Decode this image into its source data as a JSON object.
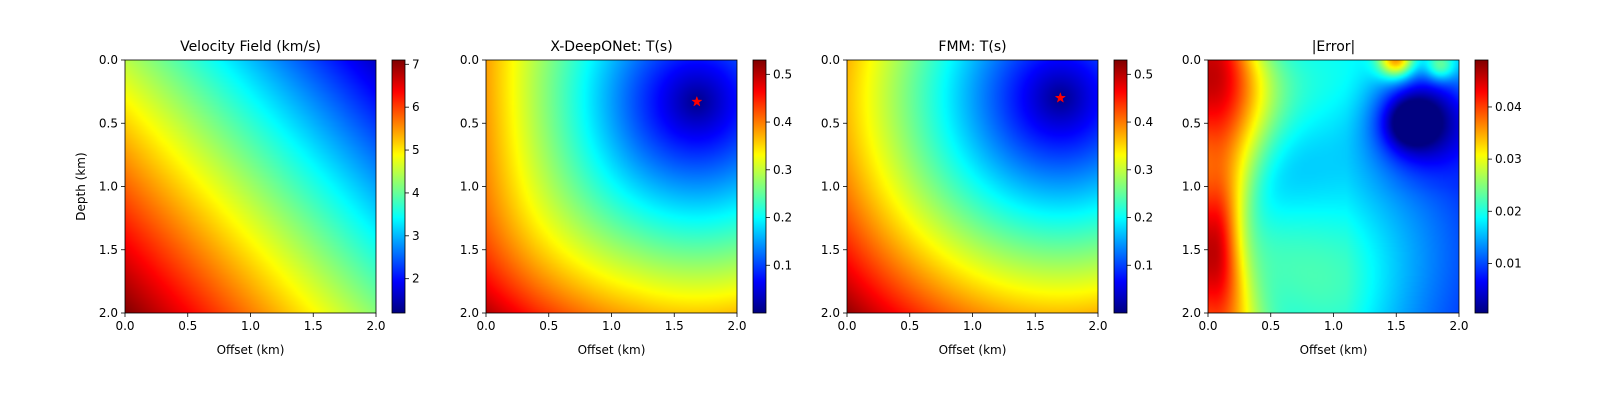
{
  "chart_data": [
    {
      "type": "heatmap",
      "title": "Velocity Field (km/s)",
      "xlabel": "Offset (km)",
      "ylabel": "Depth (km)",
      "xlim": [
        0,
        2
      ],
      "ylim": [
        2,
        0
      ],
      "xticks": [
        "0.0",
        "0.5",
        "1.0",
        "1.5",
        "2.0"
      ],
      "yticks": [
        "0.0",
        "0.5",
        "1.0",
        "1.5",
        "2.0"
      ],
      "colormap": "jet",
      "colorbar": {
        "range": [
          1.2,
          7.1
        ],
        "ticks": [
          "2",
          "3",
          "4",
          "5",
          "6",
          "7"
        ]
      },
      "field": "linear velocity decreasing from bottom-left (~7.1 km/s) to top-right (~1.2 km/s)",
      "source_marker": null
    },
    {
      "type": "heatmap",
      "title": "X-DeepONet: T(s)",
      "xlabel": "Offset (km)",
      "ylabel": "",
      "xlim": [
        0,
        2
      ],
      "ylim": [
        2,
        0
      ],
      "xticks": [
        "0.0",
        "0.5",
        "1.0",
        "1.5",
        "2.0"
      ],
      "yticks": [
        "0.0",
        "0.5",
        "1.0",
        "1.5",
        "2.0"
      ],
      "colormap": "jet",
      "colorbar": {
        "range": [
          0.0,
          0.53
        ],
        "ticks": [
          "0.1",
          "0.2",
          "0.3",
          "0.4",
          "0.5"
        ]
      },
      "field": "travel time increasing radially from source",
      "source_marker": {
        "x": 1.68,
        "y": 0.33,
        "color": "#ff0000"
      }
    },
    {
      "type": "heatmap",
      "title": "FMM: T(s)",
      "xlabel": "Offset (km)",
      "ylabel": "",
      "xlim": [
        0,
        2
      ],
      "ylim": [
        2,
        0
      ],
      "xticks": [
        "0.0",
        "0.5",
        "1.0",
        "1.5",
        "2.0"
      ],
      "yticks": [
        "0.0",
        "0.5",
        "1.0",
        "1.5",
        "2.0"
      ],
      "colormap": "jet",
      "colorbar": {
        "range": [
          0.0,
          0.53
        ],
        "ticks": [
          "0.1",
          "0.2",
          "0.3",
          "0.4",
          "0.5"
        ]
      },
      "field": "travel time increasing radially from source",
      "source_marker": {
        "x": 1.7,
        "y": 0.3,
        "color": "#ff0000"
      }
    },
    {
      "type": "heatmap",
      "title": "|Error|",
      "xlabel": "Offset (km)",
      "ylabel": "",
      "xlim": [
        0,
        2
      ],
      "ylim": [
        2,
        0
      ],
      "xticks": [
        "0.0",
        "0.5",
        "1.0",
        "1.5",
        "2.0"
      ],
      "yticks": [
        "0.0",
        "0.5",
        "1.0",
        "1.5",
        "2.0"
      ],
      "colormap": "jet",
      "colorbar": {
        "range": [
          0.0005,
          0.049
        ],
        "ticks": [
          "0.01",
          "0.02",
          "0.03",
          "0.04"
        ]
      },
      "field": "absolute error: high (~0.045) along left edge, low (~0.001) near source at top-right",
      "source_marker": null
    }
  ]
}
